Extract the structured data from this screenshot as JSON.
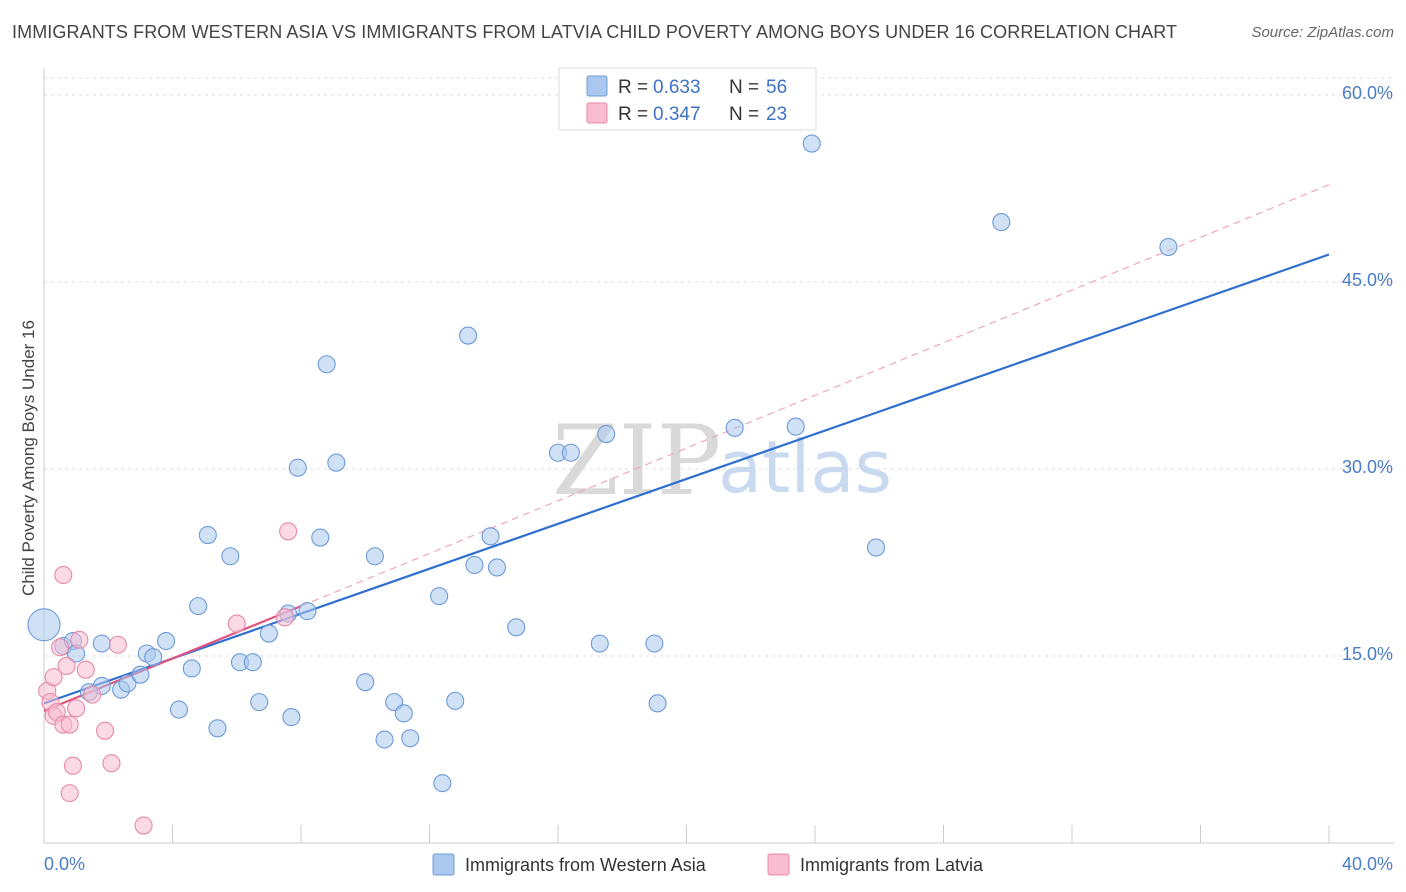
{
  "header": {
    "title": "IMMIGRANTS FROM WESTERN ASIA VS IMMIGRANTS FROM LATVIA CHILD POVERTY AMONG BOYS UNDER 16 CORRELATION CHART",
    "source": "Source: ZipAtlas.com"
  },
  "watermark": {
    "zip": "ZIP",
    "atlas": "atlas"
  },
  "colors": {
    "blue_fill": "#aac8ee",
    "blue_stroke": "#6d9bd8",
    "blue_line": "#2f6fd0",
    "pink_fill": "#f7bcd0",
    "pink_stroke": "#e68aa8",
    "pink_line": "#e0557f",
    "grid": "#dddddd",
    "tick_label": "#4a7cc7"
  },
  "legend": {
    "rows": [
      {
        "r_label": "R =",
        "r_value": "0.633",
        "n_label": "N =",
        "n_value": "56"
      },
      {
        "r_label": "R =",
        "r_value": "0.347",
        "n_label": "N =",
        "n_value": "23"
      }
    ]
  },
  "chart_data": {
    "type": "scatter",
    "title": "IMMIGRANTS FROM WESTERN ASIA VS IMMIGRANTS FROM LATVIA CHILD POVERTY AMONG BOYS UNDER 16 CORRELATION CHART",
    "xlabel": "",
    "ylabel": "Child Poverty Among Boys Under 16",
    "xlim": [
      0,
      40
    ],
    "ylim": [
      0,
      62
    ],
    "x_tick_labels": [
      "0.0%",
      "40.0%"
    ],
    "y_ticks": [
      15,
      30,
      45,
      60
    ],
    "y_tick_labels": [
      "15.0%",
      "30.0%",
      "45.0%",
      "60.0%"
    ],
    "grid": true,
    "series": [
      {
        "name": "Immigrants from Western Asia",
        "R": 0.633,
        "N": 56,
        "trend": {
          "x": [
            0,
            40
          ],
          "y": [
            11.2,
            47.2
          ]
        },
        "points": [
          [
            0.0,
            17.5
          ],
          [
            0.6,
            15.8
          ],
          [
            0.9,
            16.2
          ],
          [
            1.8,
            16.0
          ],
          [
            1.8,
            12.6
          ],
          [
            1.4,
            12.1
          ],
          [
            1.0,
            15.2
          ],
          [
            2.4,
            12.3
          ],
          [
            2.6,
            12.8
          ],
          [
            3.0,
            13.5
          ],
          [
            3.2,
            15.2
          ],
          [
            3.4,
            14.9
          ],
          [
            3.8,
            16.2
          ],
          [
            4.2,
            10.7
          ],
          [
            4.6,
            14.0
          ],
          [
            4.8,
            19.0
          ],
          [
            5.1,
            24.7
          ],
          [
            5.4,
            9.2
          ],
          [
            5.8,
            23.0
          ],
          [
            6.1,
            14.5
          ],
          [
            6.5,
            14.5
          ],
          [
            6.7,
            11.3
          ],
          [
            7.0,
            16.8
          ],
          [
            7.6,
            18.4
          ],
          [
            7.7,
            10.1
          ],
          [
            7.9,
            30.1
          ],
          [
            8.2,
            18.6
          ],
          [
            8.6,
            24.5
          ],
          [
            8.8,
            38.4
          ],
          [
            9.1,
            30.5
          ],
          [
            10.0,
            12.9
          ],
          [
            10.3,
            23.0
          ],
          [
            10.6,
            8.3
          ],
          [
            10.9,
            11.3
          ],
          [
            11.2,
            10.4
          ],
          [
            11.4,
            8.4
          ],
          [
            12.3,
            19.8
          ],
          [
            12.4,
            4.8
          ],
          [
            12.8,
            11.4
          ],
          [
            13.2,
            40.7
          ],
          [
            13.4,
            22.3
          ],
          [
            13.9,
            24.6
          ],
          [
            14.1,
            22.1
          ],
          [
            14.7,
            17.3
          ],
          [
            16.0,
            31.3
          ],
          [
            16.4,
            31.3
          ],
          [
            17.3,
            16.0
          ],
          [
            17.5,
            32.8
          ],
          [
            19.0,
            16.0
          ],
          [
            19.1,
            11.2
          ],
          [
            21.5,
            33.3
          ],
          [
            23.4,
            33.4
          ],
          [
            23.9,
            56.1
          ],
          [
            25.9,
            23.7
          ],
          [
            29.8,
            49.8
          ],
          [
            35.0,
            47.8
          ]
        ]
      },
      {
        "name": "Immigrants from Latvia",
        "R": 0.347,
        "N": 23,
        "trend": {
          "x": [
            0,
            8.0
          ],
          "y": [
            10.6,
            19.0
          ]
        },
        "trend_dashed": {
          "x": [
            8.0,
            40
          ],
          "y": [
            19.0,
            52.8
          ]
        },
        "points": [
          [
            0.1,
            12.2
          ],
          [
            0.2,
            11.3
          ],
          [
            0.3,
            13.3
          ],
          [
            0.3,
            10.2
          ],
          [
            0.4,
            10.5
          ],
          [
            0.5,
            15.7
          ],
          [
            0.6,
            9.5
          ],
          [
            0.6,
            21.5
          ],
          [
            0.7,
            14.2
          ],
          [
            0.8,
            4.0
          ],
          [
            0.8,
            9.5
          ],
          [
            0.9,
            6.2
          ],
          [
            1.0,
            10.8
          ],
          [
            1.1,
            16.3
          ],
          [
            1.3,
            13.9
          ],
          [
            1.5,
            11.9
          ],
          [
            1.9,
            9.0
          ],
          [
            2.1,
            6.4
          ],
          [
            2.3,
            15.9
          ],
          [
            3.1,
            1.4
          ],
          [
            6.0,
            17.6
          ],
          [
            7.6,
            25.0
          ],
          [
            7.5,
            18.1
          ]
        ]
      }
    ]
  },
  "bottom_legend": {
    "items": [
      {
        "label": "Immigrants from Western Asia"
      },
      {
        "label": "Immigrants from Latvia"
      }
    ]
  }
}
